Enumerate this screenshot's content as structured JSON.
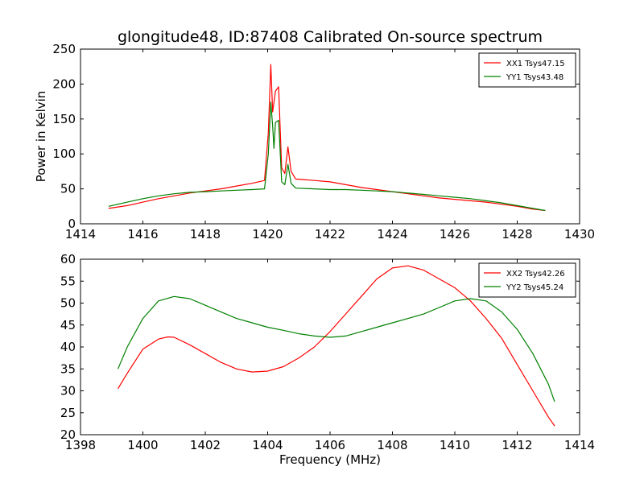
{
  "title": "glongitude48, ID:87408 Calibrated On-source spectrum",
  "chart_data": [
    {
      "type": "line",
      "ylabel": "Power in Kelvin",
      "xlabel": "",
      "xlim": [
        1414,
        1430
      ],
      "ylim": [
        0,
        250
      ],
      "xticks": [
        "1414",
        "1416",
        "1418",
        "1420",
        "1422",
        "1424",
        "1426",
        "1428",
        "1430"
      ],
      "yticks": [
        "0",
        "50",
        "100",
        "150",
        "200",
        "250"
      ],
      "legend_position": "top-right",
      "series": [
        {
          "name": "XX1 Tsys47.15",
          "color": "#ff0000",
          "x": [
            1414.9,
            1415.5,
            1416,
            1416.5,
            1417,
            1417.5,
            1418,
            1418.5,
            1419,
            1419.5,
            1419.9,
            1420.02,
            1420.1,
            1420.16,
            1420.25,
            1420.35,
            1420.45,
            1420.55,
            1420.65,
            1420.75,
            1420.9,
            1421.5,
            1422,
            1422.5,
            1423,
            1423.5,
            1424,
            1424.5,
            1425,
            1425.5,
            1426,
            1426.5,
            1427,
            1427.5,
            1428,
            1428.5,
            1428.9
          ],
          "y": [
            22,
            26,
            31,
            36,
            40,
            44,
            47,
            50,
            54,
            58,
            62,
            130,
            228,
            160,
            190,
            196,
            80,
            72,
            110,
            75,
            64,
            62,
            60,
            56,
            52,
            49,
            46,
            43,
            40,
            37,
            35,
            33,
            31,
            28,
            25,
            21,
            19
          ]
        },
        {
          "name": "YY1 Tsys43.48",
          "color": "#008000",
          "x": [
            1414.9,
            1415.5,
            1416,
            1416.5,
            1417,
            1417.5,
            1418,
            1418.5,
            1419,
            1419.5,
            1419.9,
            1420.02,
            1420.1,
            1420.16,
            1420.2,
            1420.25,
            1420.35,
            1420.45,
            1420.55,
            1420.65,
            1420.75,
            1420.9,
            1421.5,
            1422,
            1422.5,
            1423,
            1423.5,
            1424,
            1424.5,
            1425,
            1425.5,
            1426,
            1426.5,
            1427,
            1427.5,
            1428,
            1428.5,
            1428.9
          ],
          "y": [
            25,
            31,
            36,
            40,
            43,
            45,
            46,
            47,
            48,
            49,
            50,
            100,
            174,
            140,
            108,
            145,
            148,
            60,
            56,
            85,
            58,
            51,
            50,
            49,
            49,
            48,
            47,
            46,
            44,
            42,
            40,
            38,
            36,
            33,
            30,
            26,
            22,
            19
          ]
        }
      ]
    },
    {
      "type": "line",
      "xlabel": "Frequency (MHz)",
      "ylabel": "",
      "xlim": [
        1398,
        1414
      ],
      "ylim": [
        20,
        60
      ],
      "xticks": [
        "1398",
        "1400",
        "1402",
        "1404",
        "1406",
        "1408",
        "1410",
        "1412",
        "1414"
      ],
      "yticks": [
        "20",
        "25",
        "30",
        "35",
        "40",
        "45",
        "50",
        "55",
        "60"
      ],
      "legend_position": "top-right",
      "series": [
        {
          "name": "XX2 Tsys42.26",
          "color": "#ff0000",
          "x": [
            1399.2,
            1399.5,
            1400,
            1400.5,
            1400.8,
            1401,
            1401.5,
            1402,
            1402.5,
            1403,
            1403.5,
            1404,
            1404.5,
            1405,
            1405.5,
            1406,
            1406.5,
            1407,
            1407.5,
            1408,
            1408.5,
            1409,
            1409.5,
            1410,
            1410.5,
            1411,
            1411.5,
            1412,
            1412.5,
            1413,
            1413.2
          ],
          "y": [
            30.5,
            34,
            39.5,
            41.8,
            42.3,
            42.2,
            40.5,
            38.5,
            36.5,
            35,
            34.3,
            34.5,
            35.5,
            37.5,
            40,
            43.5,
            47.5,
            51.5,
            55.5,
            58,
            58.5,
            57.5,
            55.5,
            53.5,
            50.5,
            46.5,
            42,
            36,
            30,
            24,
            22
          ]
        },
        {
          "name": "YY2 Tsys45.24",
          "color": "#008000",
          "x": [
            1399.2,
            1399.5,
            1400,
            1400.5,
            1401,
            1401.5,
            1402,
            1402.5,
            1403,
            1403.5,
            1404,
            1404.5,
            1405,
            1405.5,
            1406,
            1406.5,
            1407,
            1407.5,
            1408,
            1408.5,
            1409,
            1409.5,
            1410,
            1410.5,
            1411,
            1411.5,
            1412,
            1412.5,
            1413,
            1413.2
          ],
          "y": [
            35,
            40,
            46.5,
            50.5,
            51.5,
            51,
            49.5,
            48,
            46.5,
            45.5,
            44.5,
            43.8,
            43,
            42.5,
            42.2,
            42.5,
            43.5,
            44.5,
            45.5,
            46.5,
            47.5,
            49,
            50.5,
            51,
            50.5,
            48,
            44,
            38.5,
            31.5,
            27.5
          ]
        }
      ]
    }
  ]
}
